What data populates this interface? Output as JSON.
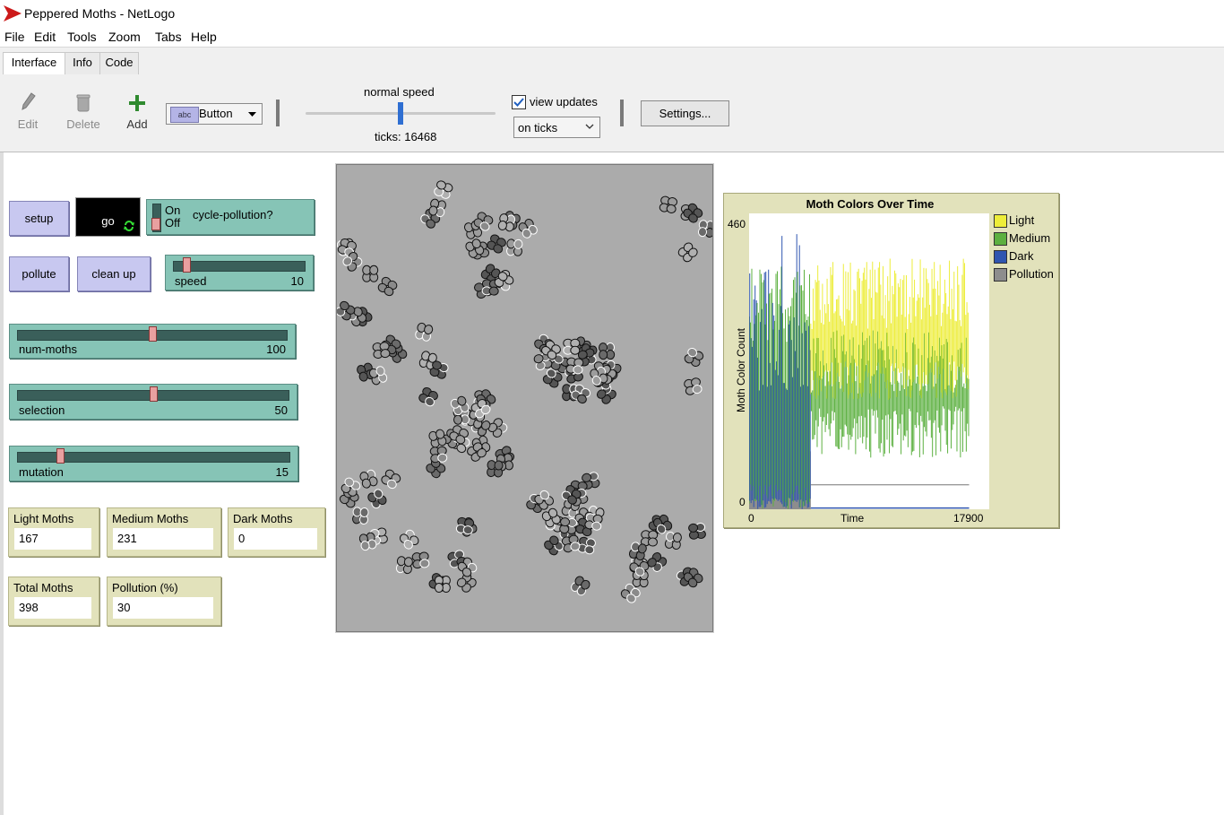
{
  "window": {
    "title": "Peppered Moths - NetLogo"
  },
  "menu": [
    "File",
    "Edit",
    "Tools",
    "Zoom",
    "Tabs",
    "Help"
  ],
  "tabs": [
    "Interface",
    "Info",
    "Code"
  ],
  "toolbar": {
    "edit_label": "Edit",
    "delete_label": "Delete",
    "add_label": "Add",
    "widget_type": "Button",
    "speed_label": "normal speed",
    "speed_value": 0.5,
    "ticks_label": "ticks: 16468",
    "view_updates_label": "view updates",
    "view_updates_checked": true,
    "update_mode": "on ticks",
    "settings_label": "Settings..."
  },
  "widgets": {
    "setup_label": "setup",
    "go_label": "go",
    "switch": {
      "on": "On",
      "off": "Off",
      "label": "cycle-pollution?",
      "state": "off"
    },
    "pollute_label": "pollute",
    "cleanup_label": "clean up",
    "sliders": [
      {
        "name": "speed",
        "value": "10",
        "fraction": 0.08
      },
      {
        "name": "num-moths",
        "value": "100",
        "fraction": 0.5
      },
      {
        "name": "selection",
        "value": "50",
        "fraction": 0.5
      },
      {
        "name": "mutation",
        "value": "15",
        "fraction": 0.15
      }
    ],
    "monitors": [
      {
        "name": "Light Moths",
        "value": "167"
      },
      {
        "name": "Medium Moths",
        "value": "231"
      },
      {
        "name": "Dark Moths",
        "value": "0"
      },
      {
        "name": "Total Moths",
        "value": "398"
      },
      {
        "name": "Pollution (%)",
        "value": "30"
      }
    ]
  },
  "chart_data": {
    "type": "line",
    "title": "Moth Colors Over Time",
    "xlabel": "Time",
    "ylabel": "Moth Color Count",
    "xlim": [
      0,
      17900
    ],
    "ylim": [
      0,
      460
    ],
    "x_ticks": [
      "0",
      "17900"
    ],
    "y_ticks": [
      "0",
      "460"
    ],
    "legend_placement": "right",
    "series": [
      {
        "name": "Light",
        "color": "#eded3a"
      },
      {
        "name": "Medium",
        "color": "#5cb040"
      },
      {
        "name": "Dark",
        "color": "#2f55b0"
      },
      {
        "name": "Pollution",
        "color": "#8d8d8d"
      }
    ]
  },
  "colors": {
    "button": "#c8c8f0",
    "slider": "#86c4b6",
    "monitor": "#e2e2bb",
    "world": "#ababab"
  }
}
